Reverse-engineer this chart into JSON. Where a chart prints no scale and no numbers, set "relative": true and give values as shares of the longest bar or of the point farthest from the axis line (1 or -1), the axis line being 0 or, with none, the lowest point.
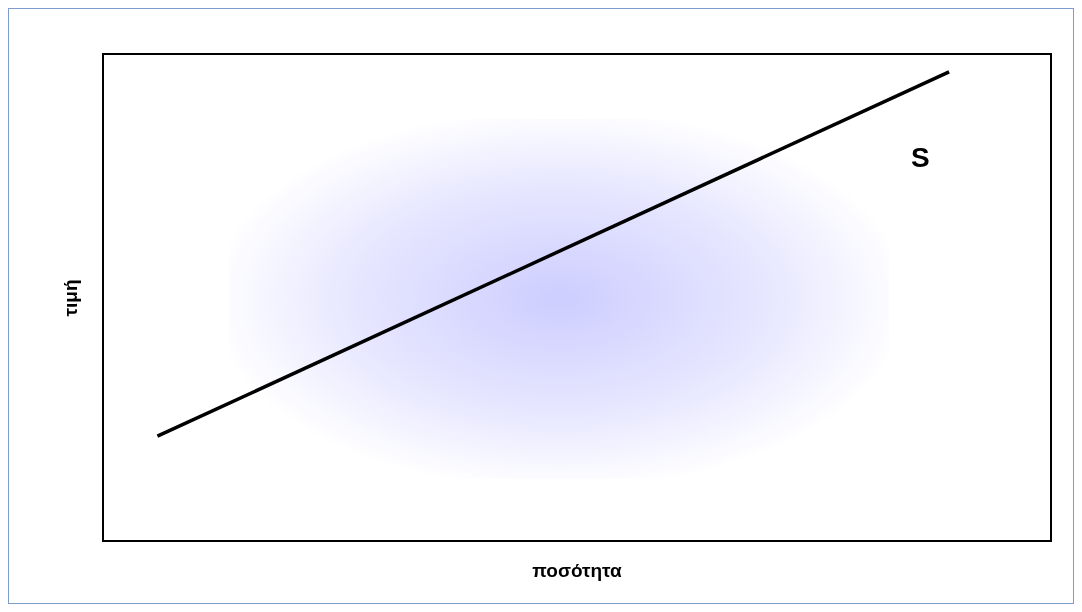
{
  "chart_data": {
    "type": "line",
    "xlabel": "ποσότητα",
    "ylabel": "τιμή",
    "relative": true,
    "categories": [
      null,
      null
    ],
    "series": [
      {
        "name": "S",
        "color": "#000000",
        "values": [
          0.225,
          1
        ]
      }
    ],
    "marker": "none",
    "line_style": "solid",
    "grid": false,
    "legend": false
  }
}
